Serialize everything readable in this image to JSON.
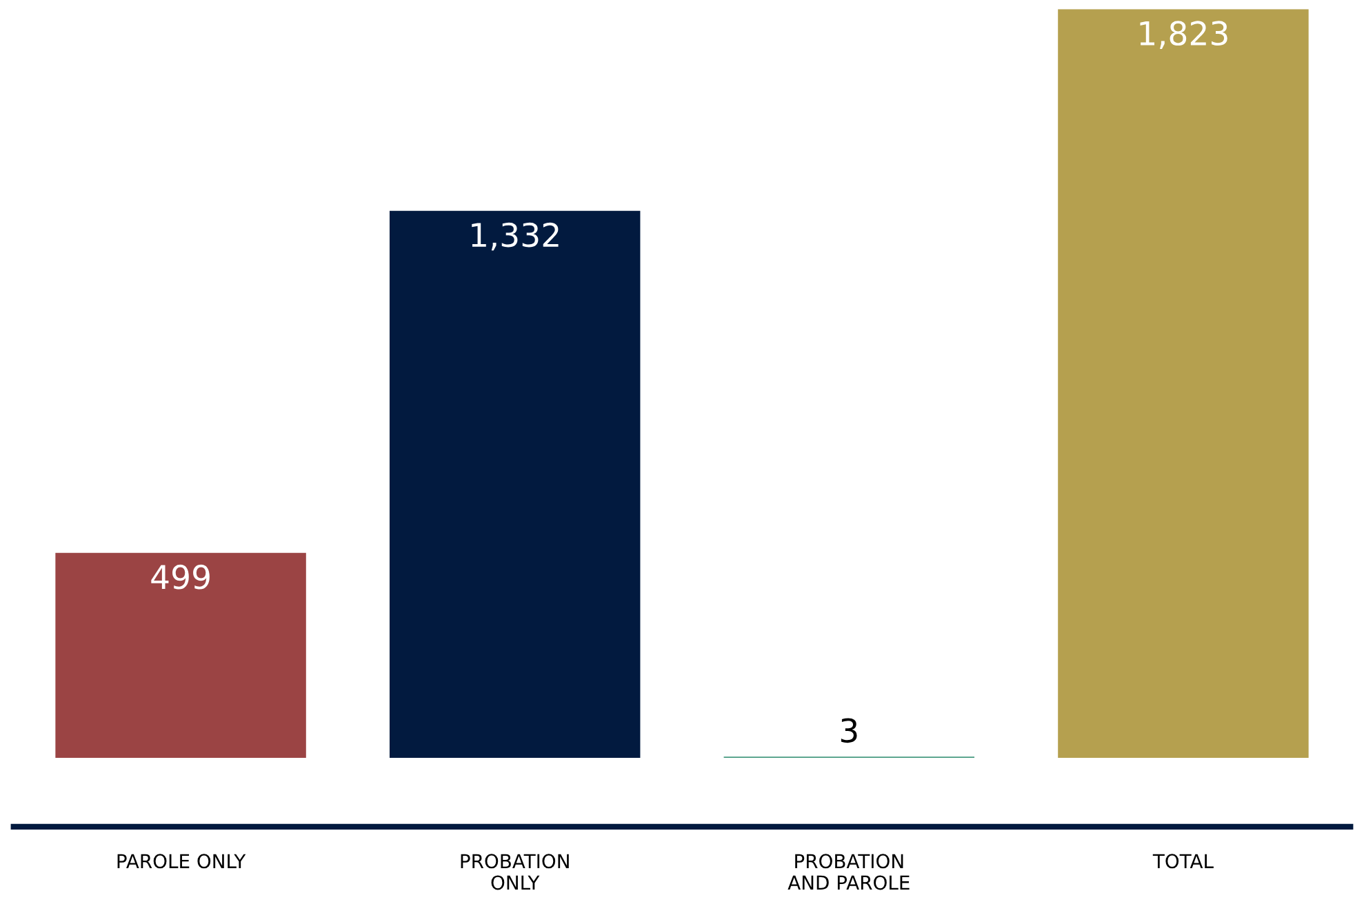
{
  "chart_data": {
    "type": "bar",
    "categories": [
      "PAROLE ONLY",
      "PROBATION\nONLY",
      "PROBATION\nAND PAROLE",
      "TOTAL"
    ],
    "values": [
      499,
      1332,
      3,
      1823
    ],
    "colors": [
      "#9b4444",
      "#021a3f",
      "#479a80",
      "#b5a04f"
    ],
    "value_labels": [
      "499",
      "1,332",
      "3",
      "1,823"
    ],
    "grid": false,
    "legend": false
  }
}
